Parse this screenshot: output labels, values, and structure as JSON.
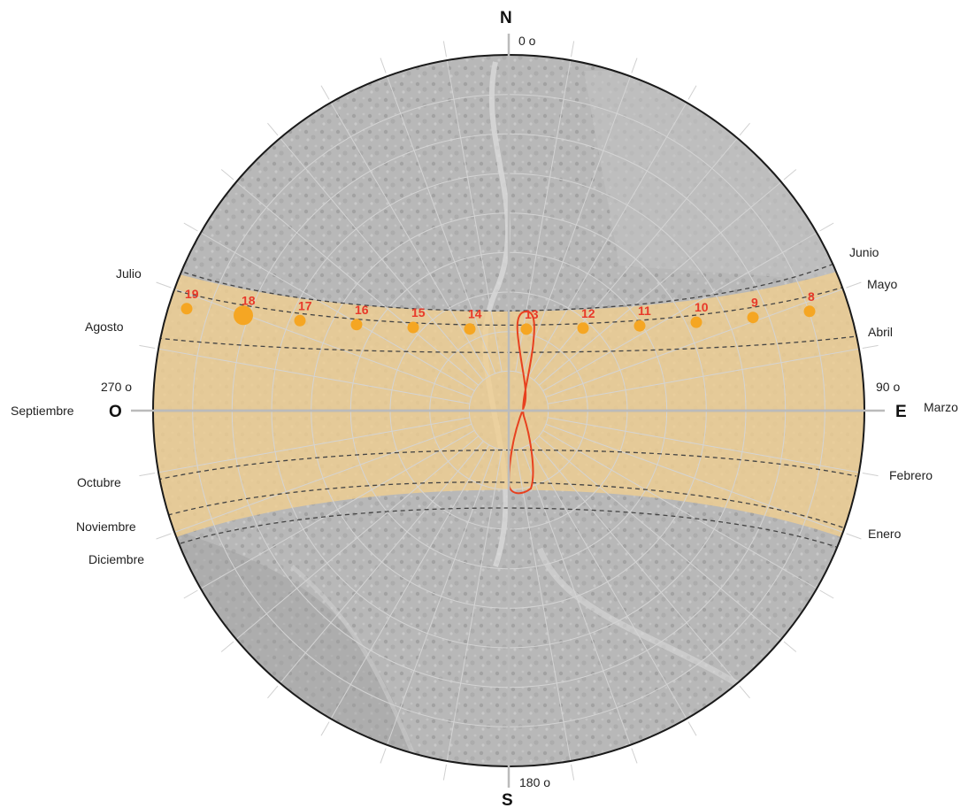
{
  "cardinals": {
    "north": "N",
    "south": "S",
    "east": "E",
    "west": "O"
  },
  "degrees": {
    "north": "0 o",
    "east": "90 o",
    "south": "180 o",
    "west": "270 o"
  },
  "months_left": [
    "Julio",
    "Agosto",
    "Septiembre",
    "Octubre",
    "Noviembre",
    "Diciembre"
  ],
  "months_right": [
    "Junio",
    "Mayo",
    "Abril",
    "Marzo",
    "Febrero",
    "Enero"
  ],
  "hours": [
    "19",
    "18",
    "17",
    "16",
    "15",
    "14",
    "13",
    "12",
    "11",
    "10",
    "9",
    "8"
  ],
  "colors": {
    "band": "#f2cf8f",
    "sun_point": "#f5a623",
    "hour_text": "#e8392a",
    "analemma": "#e8411f",
    "background_map": "#9a9a9a"
  }
}
